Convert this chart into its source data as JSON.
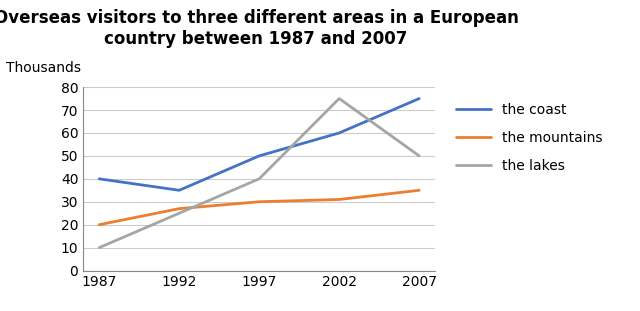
{
  "title_line1": "Overseas visitors to three different areas in a European",
  "title_line2": "country between 1987 and 2007",
  "ylabel": "Thousands",
  "years": [
    1987,
    1992,
    1997,
    2002,
    2007
  ],
  "series": [
    {
      "label": "the coast",
      "values": [
        40,
        35,
        50,
        60,
        75
      ],
      "color": "#4472C4",
      "linewidth": 2.0
    },
    {
      "label": "the mountains",
      "values": [
        20,
        27,
        30,
        31,
        35
      ],
      "color": "#ED7D31",
      "linewidth": 2.0
    },
    {
      "label": "the lakes",
      "values": [
        10,
        25,
        40,
        75,
        50
      ],
      "color": "#A5A5A5",
      "linewidth": 2.0
    }
  ],
  "ylim": [
    0,
    80
  ],
  "yticks": [
    0,
    10,
    20,
    30,
    40,
    50,
    60,
    70,
    80
  ],
  "background_color": "#FFFFFF",
  "grid_color": "#CCCCCC",
  "title_fontsize": 12,
  "axis_fontsize": 10,
  "legend_fontsize": 10
}
